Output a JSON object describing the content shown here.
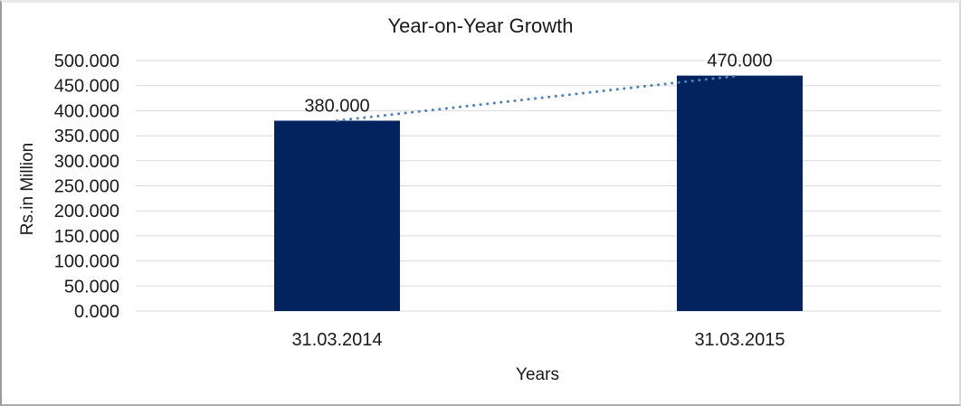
{
  "chart_data": {
    "type": "bar",
    "title": "Year-on-Year Growth",
    "categories": [
      "31.03.2014",
      "31.03.2015"
    ],
    "values": [
      380,
      470
    ],
    "value_labels": [
      "380.000",
      "470.000"
    ],
    "xlabel": "Years",
    "ylabel": "Rs.in Million",
    "ylim": [
      0,
      500
    ],
    "ytick_step": 50,
    "ytick_labels": [
      "0.000",
      "50.000",
      "100.000",
      "150.000",
      "200.000",
      "250.000",
      "300.000",
      "350.000",
      "400.000",
      "450.000",
      "500.000"
    ],
    "grid": true,
    "legend": "none",
    "trendline": {
      "style": "dotted",
      "color": "#4E81BD",
      "connects": "bar tops",
      "from_value": 380,
      "to_value": 470
    },
    "colors": {
      "bar": "#02235E",
      "gridline": "#D9D9D9",
      "text": "#1A1A1A"
    }
  }
}
